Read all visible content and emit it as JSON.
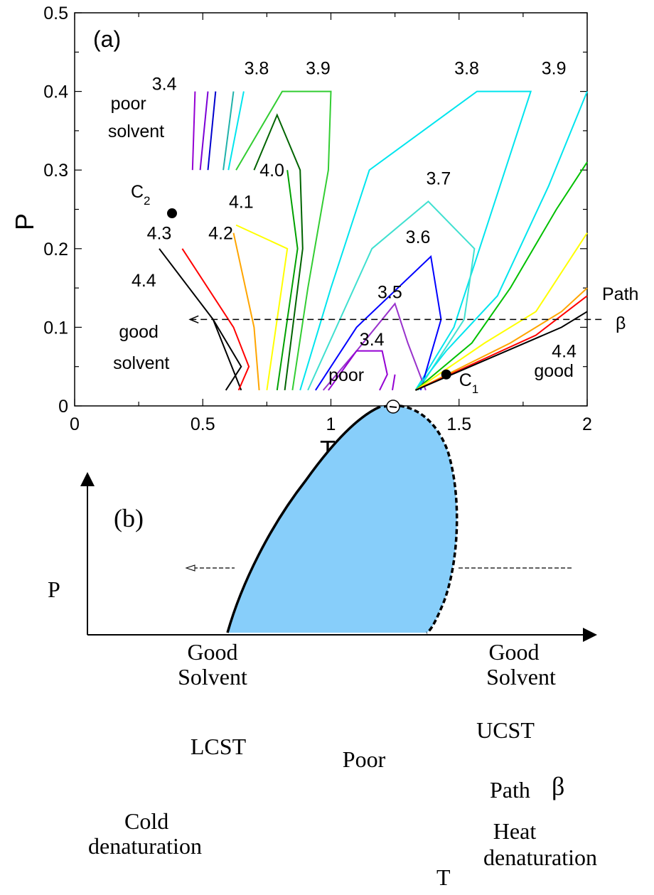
{
  "chart_data": [
    {
      "type": "line",
      "panel_label": "(a)",
      "xlabel": "T",
      "ylabel": "P",
      "xlim": [
        0,
        2
      ],
      "ylim": [
        0,
        0.5
      ],
      "x_ticks": [
        "0",
        "0.5",
        "1",
        "1.5",
        "2"
      ],
      "y_ticks": [
        "0",
        "0.1",
        "0.2",
        "0.3",
        "0.4",
        "0.5"
      ],
      "series": [
        {
          "color": "#000000",
          "points": [
            [
              0.33,
              0.2
            ],
            [
              0.54,
              0.11
            ],
            [
              0.65,
              0.02
            ]
          ]
        },
        {
          "color": "#000000",
          "points": [
            [
              0.59,
              0.02
            ],
            [
              0.65,
              0.05
            ],
            [
              0.54,
              0.11
            ]
          ]
        },
        {
          "color": "#ff0000",
          "points": [
            [
              0.42,
              0.2
            ],
            [
              0.62,
              0.1
            ],
            [
              0.68,
              0.05
            ],
            [
              0.64,
              0.02
            ]
          ]
        },
        {
          "color": "#ffa500",
          "points": [
            [
              0.62,
              0.22
            ],
            [
              0.7,
              0.1
            ],
            [
              0.72,
              0.02
            ]
          ]
        },
        {
          "color": "#ffff00",
          "points": [
            [
              0.63,
              0.23
            ],
            [
              0.83,
              0.2
            ],
            [
              0.75,
              0.02
            ]
          ]
        },
        {
          "color": "#00a000",
          "points": [
            [
              0.83,
              0.3
            ],
            [
              0.87,
              0.2
            ],
            [
              0.79,
              0.02
            ]
          ]
        },
        {
          "color": "#006400",
          "points": [
            [
              0.7,
              0.3
            ],
            [
              0.79,
              0.37
            ],
            [
              0.88,
              0.3
            ],
            [
              0.89,
              0.2
            ],
            [
              0.82,
              0.02
            ]
          ]
        },
        {
          "color": "#32cd32",
          "points": [
            [
              0.63,
              0.3
            ],
            [
              0.81,
              0.4
            ],
            [
              1.0,
              0.4
            ],
            [
              0.99,
              0.3
            ],
            [
              0.91,
              0.15
            ],
            [
              0.85,
              0.02
            ]
          ]
        },
        {
          "color": "#00e5ee",
          "points": [
            [
              0.6,
              0.3
            ],
            [
              0.66,
              0.4
            ]
          ]
        },
        {
          "color": "#20b2aa",
          "points": [
            [
              0.58,
              0.3
            ],
            [
              0.62,
              0.4
            ]
          ]
        },
        {
          "color": "#0000cd",
          "points": [
            [
              0.52,
              0.3
            ],
            [
              0.55,
              0.4
            ]
          ]
        },
        {
          "color": "#7b00d6",
          "points": [
            [
              0.49,
              0.3
            ],
            [
              0.52,
              0.4
            ]
          ]
        },
        {
          "color": "#9400d3",
          "points": [
            [
              0.46,
              0.3
            ],
            [
              0.47,
              0.4
            ]
          ]
        },
        {
          "color": "#00e5ee",
          "points": [
            [
              0.88,
              0.02
            ],
            [
              1.0,
              0.15
            ],
            [
              1.15,
              0.3
            ],
            [
              1.57,
              0.4
            ],
            [
              1.78,
              0.4
            ],
            [
              1.48,
              0.1
            ],
            [
              1.33,
              0.02
            ]
          ]
        },
        {
          "color": "#40e0d0",
          "points": [
            [
              0.91,
              0.02
            ],
            [
              1.16,
              0.2
            ],
            [
              1.38,
              0.26
            ],
            [
              1.56,
              0.2
            ],
            [
              1.52,
              0.11
            ],
            [
              1.34,
              0.02
            ]
          ]
        },
        {
          "color": "#0000ff",
          "points": [
            [
              0.94,
              0.02
            ],
            [
              1.1,
              0.1
            ],
            [
              1.39,
              0.19
            ],
            [
              1.43,
              0.11
            ],
            [
              1.35,
              0.02
            ]
          ]
        },
        {
          "color": "#9932cc",
          "points": [
            [
              0.97,
              0.02
            ],
            [
              1.1,
              0.07
            ],
            [
              1.25,
              0.13
            ],
            [
              1.3,
              0.08
            ],
            [
              1.37,
              0.02
            ]
          ]
        },
        {
          "color": "#9400d3",
          "points": [
            [
              0.99,
              0.02
            ],
            [
              1.1,
              0.07
            ],
            [
              1.2,
              0.07
            ],
            [
              1.22,
              0.04
            ],
            [
              1.19,
              0.02
            ]
          ]
        },
        {
          "color": "#9400d3",
          "points": [
            [
              1.24,
              0.02
            ],
            [
              1.25,
              0.04
            ]
          ]
        },
        {
          "color": "#00e5ee",
          "points": [
            [
              1.33,
              0.02
            ],
            [
              1.45,
              0.07
            ],
            [
              1.65,
              0.14
            ],
            [
              1.85,
              0.28
            ],
            [
              2.0,
              0.4
            ]
          ]
        },
        {
          "color": "#00c000",
          "points": [
            [
              1.33,
              0.02
            ],
            [
              1.55,
              0.08
            ],
            [
              1.7,
              0.15
            ],
            [
              1.88,
              0.25
            ],
            [
              2.0,
              0.31
            ]
          ]
        },
        {
          "color": "#ffff00",
          "points": [
            [
              1.33,
              0.02
            ],
            [
              1.6,
              0.08
            ],
            [
              1.8,
              0.12
            ],
            [
              2.0,
              0.22
            ]
          ]
        },
        {
          "color": "#ffa500",
          "points": [
            [
              1.33,
              0.02
            ],
            [
              1.7,
              0.08
            ],
            [
              1.9,
              0.12
            ],
            [
              2.0,
              0.15
            ]
          ]
        },
        {
          "color": "#ff0000",
          "points": [
            [
              1.33,
              0.02
            ],
            [
              1.8,
              0.09
            ],
            [
              2.0,
              0.14
            ]
          ]
        },
        {
          "color": "#000000",
          "points": [
            [
              1.33,
              0.02
            ],
            [
              1.9,
              0.1
            ],
            [
              2.0,
              0.12
            ]
          ]
        }
      ],
      "label_items": [
        {
          "text": "3.4",
          "T": 0.35,
          "P": 0.41
        },
        {
          "text": "3.8",
          "T": 0.71,
          "P": 0.43
        },
        {
          "text": "3.9",
          "T": 0.95,
          "P": 0.43
        },
        {
          "text": "3.8",
          "T": 1.53,
          "P": 0.43
        },
        {
          "text": "3.9",
          "T": 1.87,
          "P": 0.43
        },
        {
          "text": "poor",
          "T": 0.21,
          "P": 0.385
        },
        {
          "text": "solvent",
          "T": 0.24,
          "P": 0.35
        },
        {
          "text": "4.0",
          "T": 0.77,
          "P": 0.3
        },
        {
          "text": "3.7",
          "T": 1.42,
          "P": 0.29
        },
        {
          "text": "4.1",
          "T": 0.65,
          "P": 0.26
        },
        {
          "text": "4.3",
          "T": 0.33,
          "P": 0.22
        },
        {
          "text": "4.2",
          "T": 0.57,
          "P": 0.22
        },
        {
          "text": "3.6",
          "T": 1.34,
          "P": 0.215
        },
        {
          "text": "4.4",
          "T": 0.27,
          "P": 0.16
        },
        {
          "text": "3.5",
          "T": 1.23,
          "P": 0.145
        },
        {
          "text": "good",
          "T": 0.25,
          "P": 0.095
        },
        {
          "text": "3.4",
          "T": 1.16,
          "P": 0.085
        },
        {
          "text": "solvent",
          "T": 0.26,
          "P": 0.055
        },
        {
          "text": "4.4",
          "T": 1.91,
          "P": 0.07
        },
        {
          "text": "poor",
          "T": 1.06,
          "P": 0.04
        },
        {
          "text": "good",
          "T": 1.87,
          "P": 0.045
        }
      ],
      "points": [
        {
          "name": "C",
          "sub": "2",
          "T": 0.38,
          "P": 0.245
        },
        {
          "name": "C",
          "sub": "1",
          "T": 1.45,
          "P": 0.04
        }
      ],
      "path": {
        "label_1": "Path",
        "label_2": "β",
        "P": 0.11,
        "T_from": 0.45,
        "T_to": 2.06
      }
    },
    {
      "type": "area",
      "panel_label": "(b)",
      "xlabel": "T",
      "ylabel": "P",
      "fill_color": "#87cefa",
      "regions": [
        {
          "text": "Good",
          "side": "left"
        },
        {
          "text": "Solvent",
          "side": "left"
        },
        {
          "text": "Good",
          "side": "right"
        },
        {
          "text": "Solvent",
          "side": "right"
        },
        {
          "text": "LCST"
        },
        {
          "text": "UCST"
        },
        {
          "text": "Poor"
        },
        {
          "text": "Path"
        },
        {
          "text": "β"
        },
        {
          "text": "Cold"
        },
        {
          "text": "denaturation"
        },
        {
          "text": "Heat"
        },
        {
          "text": "denaturation"
        }
      ]
    }
  ]
}
